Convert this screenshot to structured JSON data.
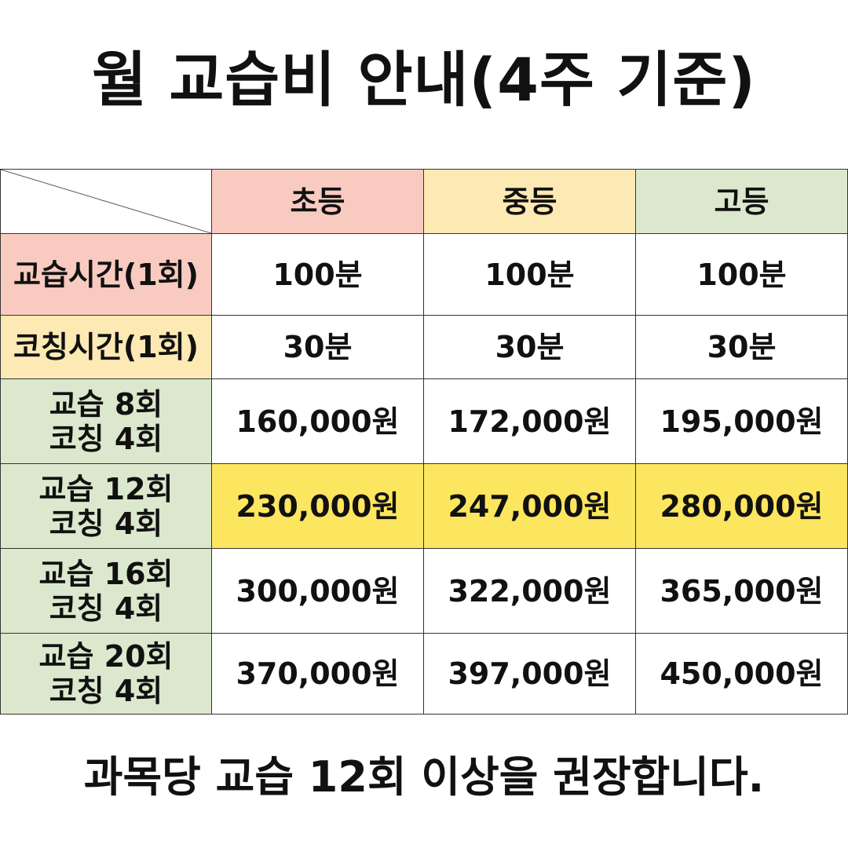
{
  "title": "월 교습비 안내(4주 기준)",
  "header": {
    "columns": [
      "초등",
      "중등",
      "고등"
    ]
  },
  "rows": [
    {
      "label_lines": [
        "교습시간(1회)"
      ],
      "values": [
        "100분",
        "100분",
        "100분"
      ]
    },
    {
      "label_lines": [
        "코칭시간(1회)"
      ],
      "values": [
        "30분",
        "30분",
        "30분"
      ]
    },
    {
      "label_lines": [
        "교습 8회",
        "코칭 4회"
      ],
      "values": [
        "160,000원",
        "172,000원",
        "195,000원"
      ]
    },
    {
      "label_lines": [
        "교습 12회",
        "코칭 4회"
      ],
      "values": [
        "230,000원",
        "247,000원",
        "280,000원"
      ]
    },
    {
      "label_lines": [
        "교습 16회",
        "코칭 4회"
      ],
      "values": [
        "300,000원",
        "322,000원",
        "365,000원"
      ]
    },
    {
      "label_lines": [
        "교습 20회",
        "코칭 4회"
      ],
      "values": [
        "370,000원",
        "397,000원",
        "450,000원"
      ]
    }
  ],
  "footer": "과목당 교습 12회 이상을 권장합니다.",
  "colors": {
    "elementary": "#f9cbc0",
    "middle": "#fde9b3",
    "high": "#dbe8cd",
    "highlight": "#fde65f",
    "border": "#333333"
  }
}
